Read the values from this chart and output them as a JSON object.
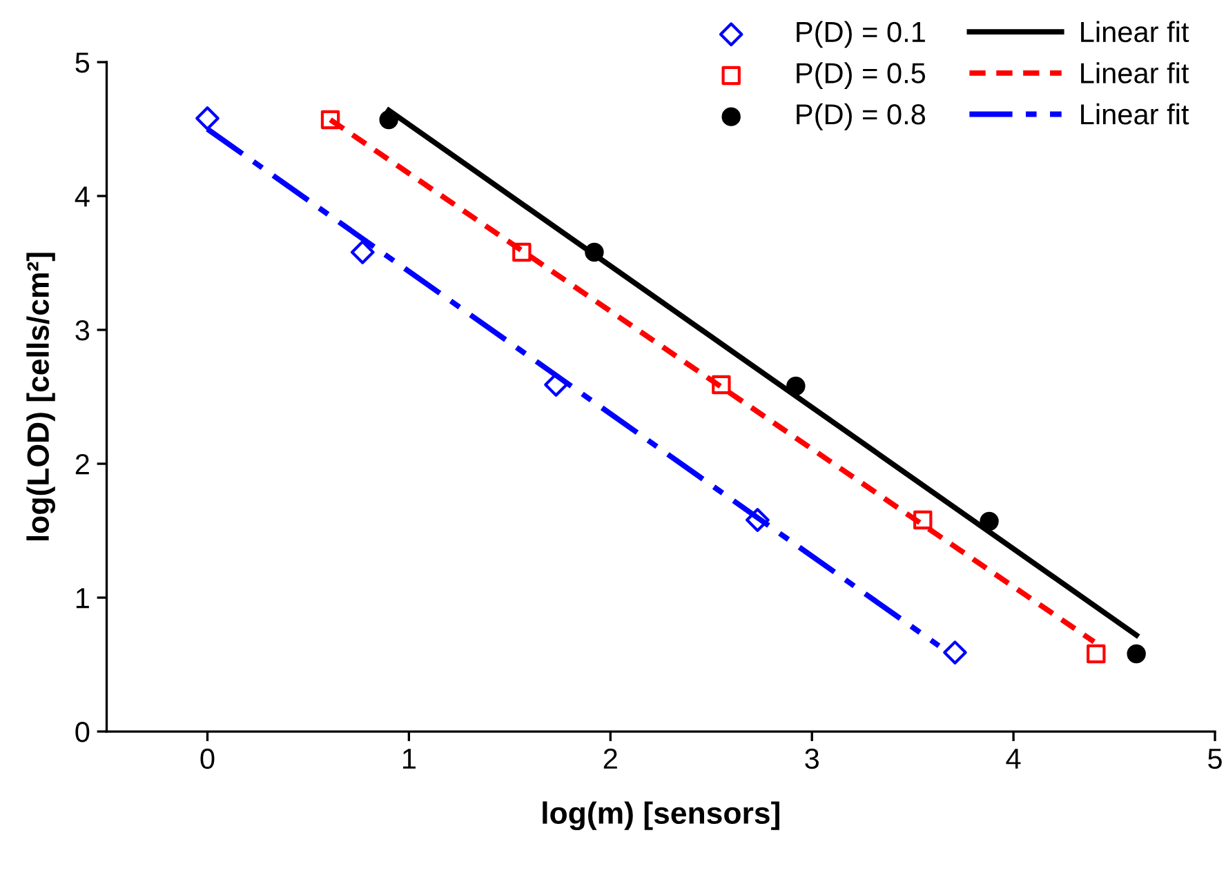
{
  "chart_data": {
    "type": "scatter",
    "xlabel": "log(m) [sensors]",
    "ylabel": "log(LOD) [cells/cm²]",
    "xlim": [
      -0.5,
      5
    ],
    "ylim": [
      0,
      5
    ],
    "xticks": [
      0,
      1,
      2,
      3,
      4,
      5
    ],
    "yticks": [
      0,
      1,
      2,
      3,
      4,
      5
    ],
    "legend": "top right",
    "series": [
      {
        "name": "P(D) = 0.1",
        "marker": "diamond",
        "color": "#0000ff",
        "x": [
          0,
          0.77,
          1.73,
          2.73,
          3.71
        ],
        "values": [
          4.58,
          3.58,
          2.59,
          1.58,
          0.59
        ]
      },
      {
        "name": "P(D) = 0.5",
        "marker": "square",
        "color": "#ff0000",
        "x": [
          0.61,
          1.56,
          2.55,
          3.55,
          4.41
        ],
        "values": [
          4.57,
          3.58,
          2.59,
          1.58,
          0.58
        ]
      },
      {
        "name": "P(D) = 0.8",
        "marker": "circle",
        "color": "#000000",
        "x": [
          0.9,
          1.92,
          2.92,
          3.88,
          4.61
        ],
        "values": [
          4.57,
          3.58,
          2.58,
          1.57,
          0.58
        ]
      },
      {
        "name": "Linear fit",
        "type": "line",
        "line_style": "solid",
        "color": "#000000",
        "x": [
          0.9,
          4.61
        ],
        "values": [
          4.64,
          0.72
        ]
      },
      {
        "name": "Linear fit",
        "type": "line",
        "line_style": "dashed",
        "color": "#ff0000",
        "x": [
          0.61,
          4.4
        ],
        "values": [
          4.57,
          0.67
        ]
      },
      {
        "name": "Linear fit",
        "type": "line",
        "line_style": "dashdot",
        "color": "#0000ff",
        "x": [
          0,
          3.63
        ],
        "values": [
          4.5,
          0.64
        ]
      }
    ]
  }
}
